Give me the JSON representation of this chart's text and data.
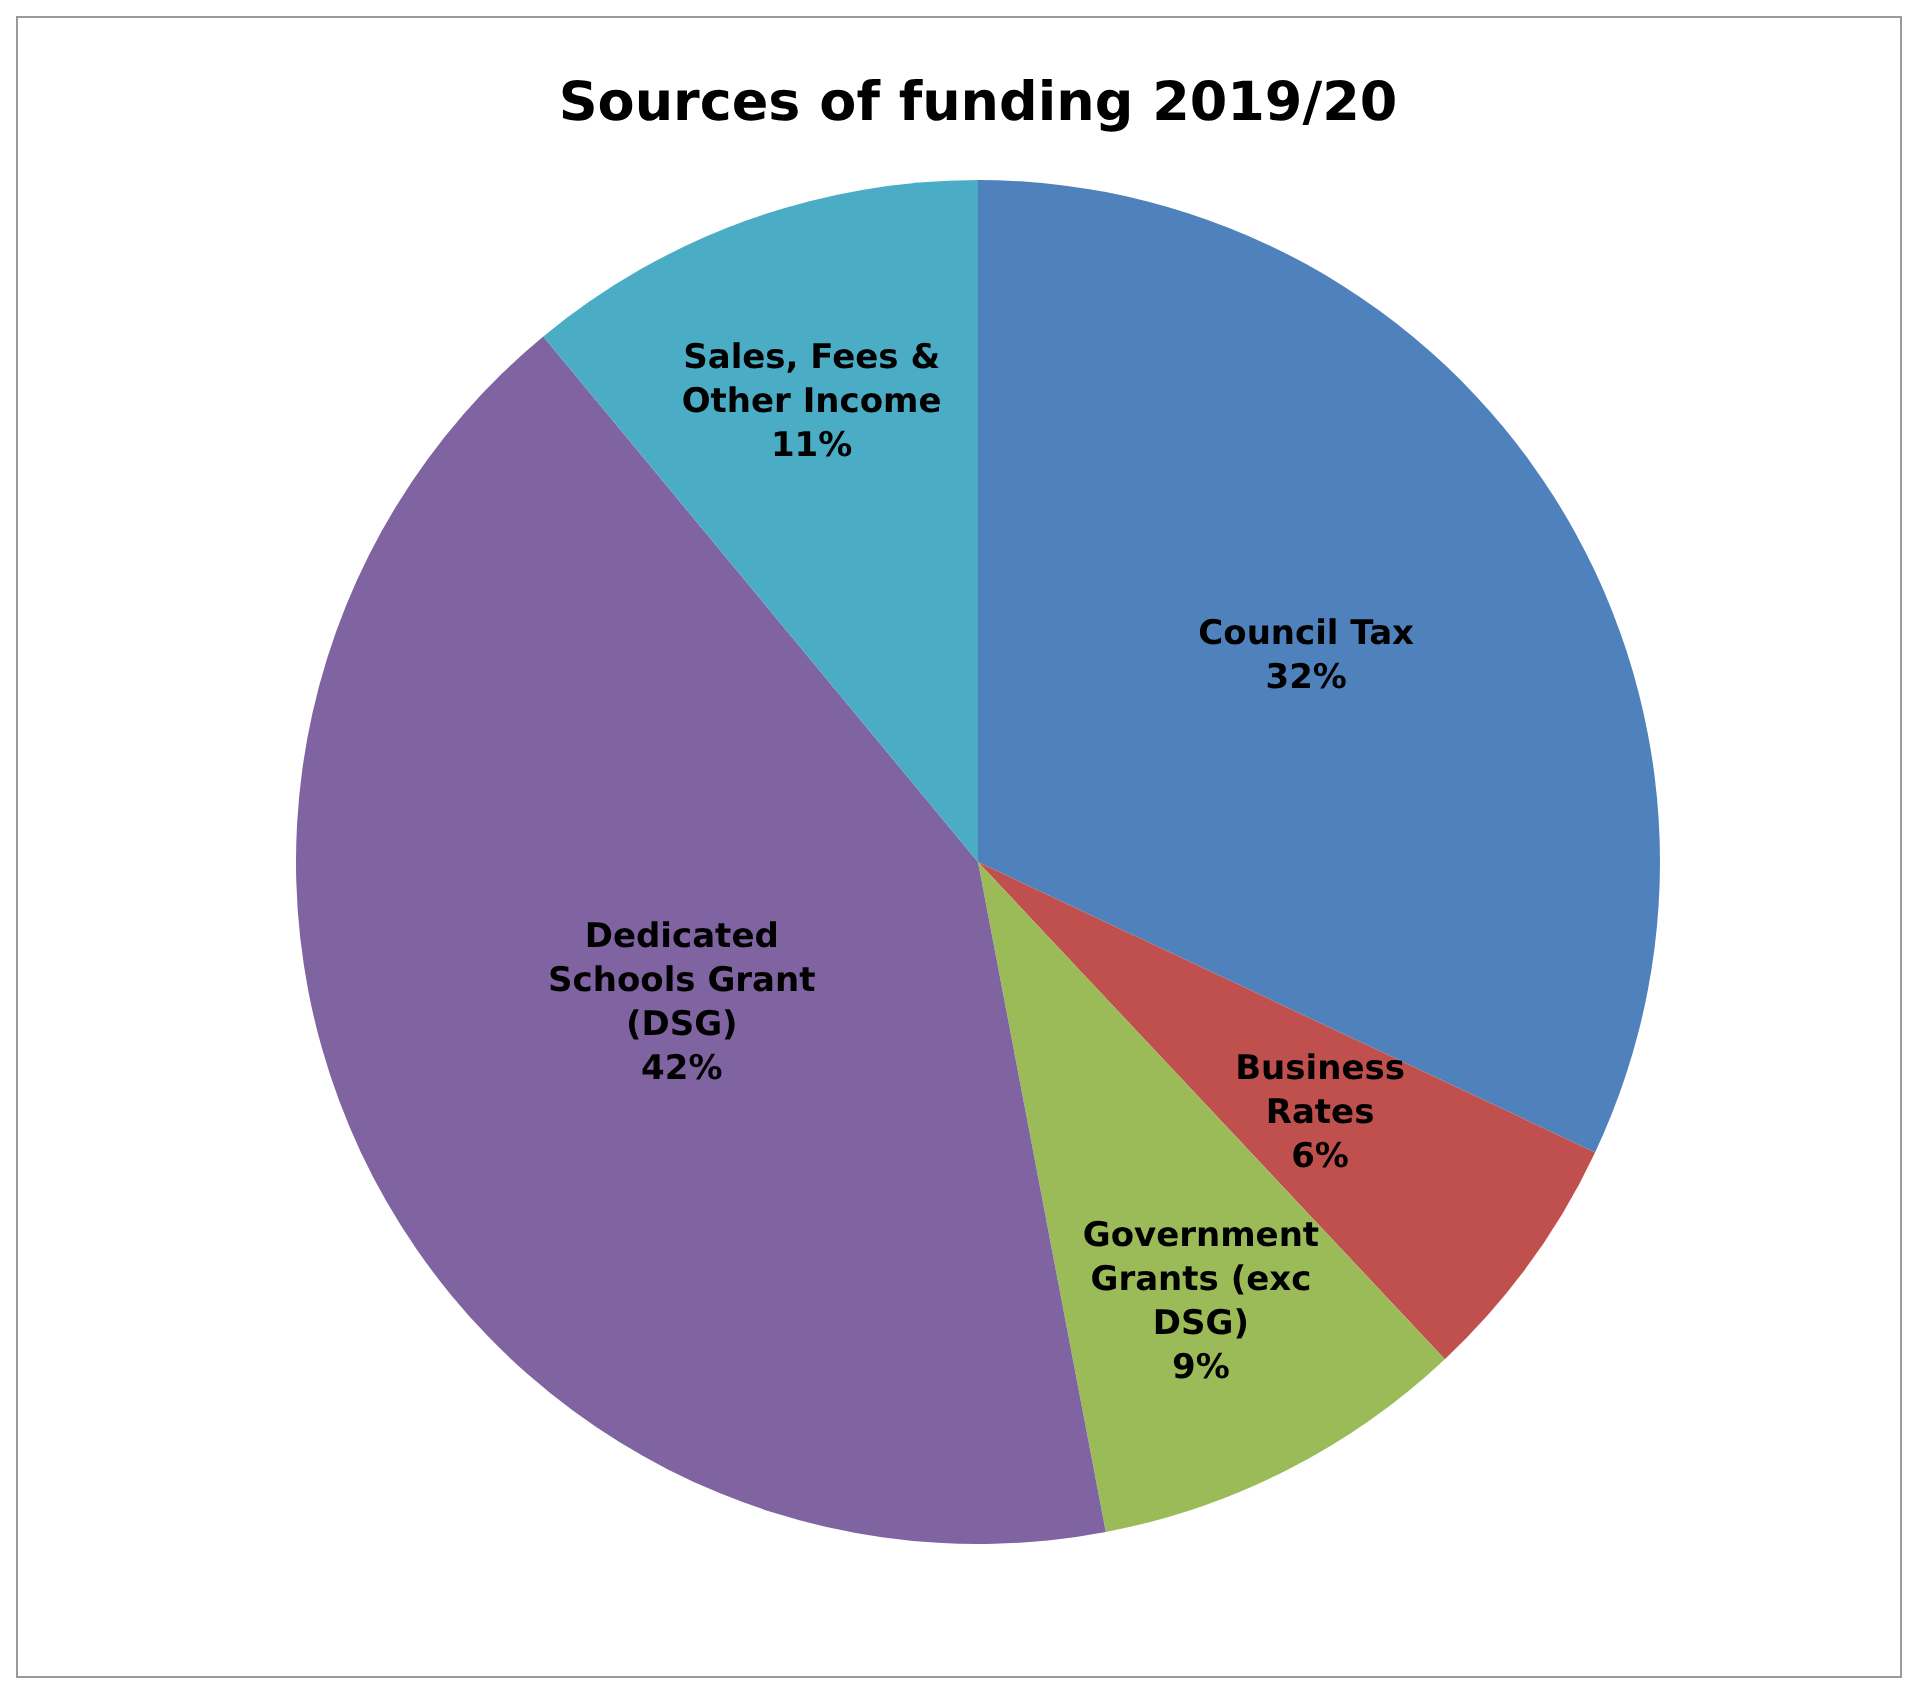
{
  "chart_data": {
    "type": "pie",
    "title": "Sources of funding 2019/20",
    "categories": [
      "Council Tax",
      "Business Rates",
      "Government Grants (exc DSG)",
      "Dedicated Schools Grant (DSG)",
      "Sales, Fees & Other Income"
    ],
    "values": [
      32,
      6,
      9,
      42,
      11
    ],
    "colors": [
      "#4f81bd",
      "#c0504d",
      "#9bbb59",
      "#8064a2",
      "#4bacc6"
    ],
    "value_labels": [
      "32%",
      "6%",
      "9%",
      "42%",
      "11%"
    ]
  }
}
